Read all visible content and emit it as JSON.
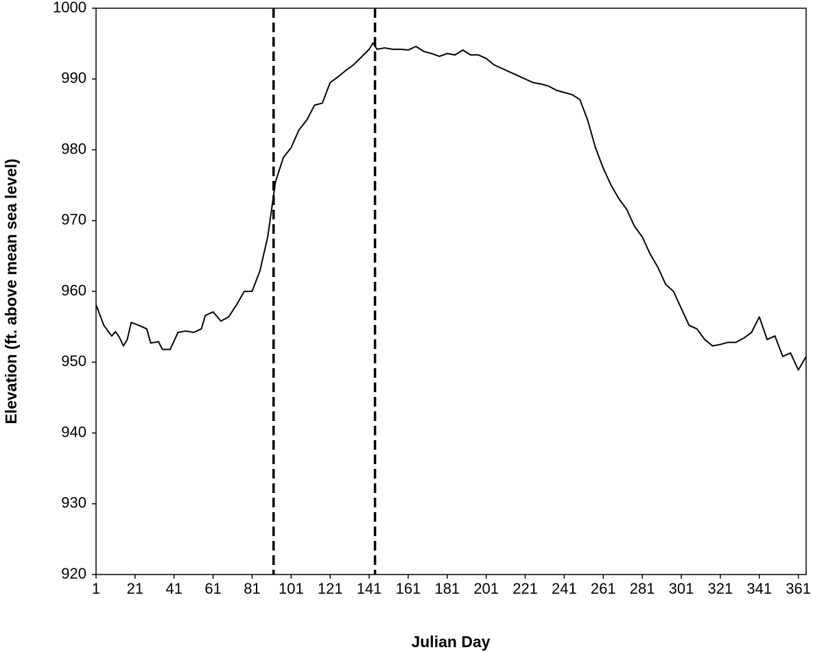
{
  "chart_data": {
    "type": "line",
    "x_label": "Julian Day",
    "y_label": "Elevation (ft. above mean sea level)",
    "x": [
      1,
      5,
      9,
      11,
      13,
      15,
      17,
      19,
      23,
      27,
      29,
      33,
      35,
      39,
      43,
      47,
      51,
      55,
      57,
      61,
      65,
      69,
      73,
      77,
      81,
      85,
      89,
      93,
      97,
      101,
      105,
      109,
      113,
      117,
      121,
      125,
      129,
      133,
      137,
      141,
      143,
      145,
      149,
      153,
      157,
      161,
      165,
      169,
      173,
      177,
      181,
      185,
      189,
      193,
      197,
      201,
      205,
      209,
      213,
      217,
      221,
      225,
      229,
      233,
      237,
      241,
      245,
      249,
      253,
      257,
      261,
      265,
      269,
      273,
      277,
      281,
      285,
      289,
      293,
      297,
      301,
      305,
      309,
      313,
      317,
      321,
      325,
      329,
      333,
      337,
      341,
      345,
      349,
      353,
      357,
      361,
      365
    ],
    "series": [
      {
        "color": "#000000",
        "values": [
          958.1,
          955.2,
          953.7,
          954.3,
          953.5,
          952.3,
          953.2,
          955.6,
          955.2,
          954.7,
          952.7,
          952.9,
          951.8,
          951.8,
          954.2,
          954.4,
          954.2,
          954.7,
          956.6,
          957.1,
          955.8,
          956.4,
          958.1,
          960.0,
          960.0,
          962.9,
          967.7,
          975.5,
          978.9,
          980.3,
          982.8,
          984.2,
          986.3,
          986.6,
          989.5,
          990.3,
          991.2,
          992.0,
          993.1,
          994.2,
          995.1,
          994.2,
          994.4,
          994.2,
          994.2,
          994.1,
          994.6,
          993.9,
          993.6,
          993.2,
          993.6,
          993.4,
          994.1,
          993.4,
          993.4,
          992.9,
          992.0,
          991.5,
          991.0,
          990.5,
          990.0,
          989.5,
          989.3,
          989.0,
          988.4,
          988.1,
          987.8,
          987.1,
          984.2,
          980.3,
          977.4,
          975.0,
          973.1,
          971.6,
          969.2,
          967.7,
          965.3,
          963.4,
          961.0,
          960.0,
          957.6,
          955.2,
          954.7,
          953.2,
          952.3,
          952.5,
          952.8,
          952.8,
          953.4,
          954.2,
          956.4,
          953.2,
          953.7,
          950.8,
          951.3,
          948.9,
          950.8
        ]
      }
    ],
    "vlines": [
      92,
      144
    ],
    "xlim": [
      1,
      365
    ],
    "xticks": [
      1,
      21,
      41,
      61,
      81,
      101,
      121,
      141,
      161,
      181,
      201,
      221,
      241,
      261,
      281,
      301,
      321,
      341,
      361
    ],
    "ylim": [
      920,
      1000
    ],
    "yticks": [
      920,
      930,
      940,
      950,
      960,
      970,
      980,
      990,
      1000
    ],
    "grid": false
  }
}
